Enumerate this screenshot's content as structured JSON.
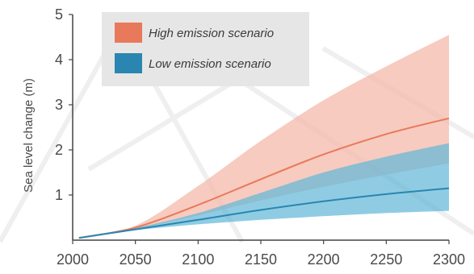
{
  "chart_data": {
    "type": "area",
    "xlabel": "",
    "ylabel": "Sea level change (m)",
    "xlim": [
      2000,
      2300
    ],
    "ylim": [
      0,
      5
    ],
    "xticks": [
      "2000",
      "2050",
      "2100",
      "2150",
      "2200",
      "2250",
      "2300"
    ],
    "yticks": [
      "1",
      "2",
      "3",
      "4",
      "5"
    ],
    "grid": false,
    "legend_position": "top-left",
    "x": [
      2005,
      2050,
      2100,
      2150,
      2200,
      2250,
      2300
    ],
    "series": [
      {
        "name": "High emission scenario",
        "color": "#e8795a",
        "band_color": "#f4b9aa",
        "median": [
          0.05,
          0.28,
          0.78,
          1.35,
          1.9,
          2.35,
          2.7
        ],
        "lower": [
          0.05,
          0.25,
          0.55,
          0.88,
          1.18,
          1.45,
          1.7
        ],
        "upper": [
          0.05,
          0.32,
          1.2,
          2.2,
          3.1,
          3.85,
          4.55
        ]
      },
      {
        "name": "Low emission scenario",
        "color": "#2a86b0",
        "band_color": "#5fb6d8",
        "median": [
          0.05,
          0.24,
          0.45,
          0.67,
          0.86,
          1.02,
          1.15
        ],
        "lower": [
          0.05,
          0.22,
          0.35,
          0.45,
          0.53,
          0.6,
          0.65
        ],
        "upper": [
          0.05,
          0.27,
          0.6,
          1.05,
          1.5,
          1.85,
          2.15
        ]
      }
    ]
  }
}
